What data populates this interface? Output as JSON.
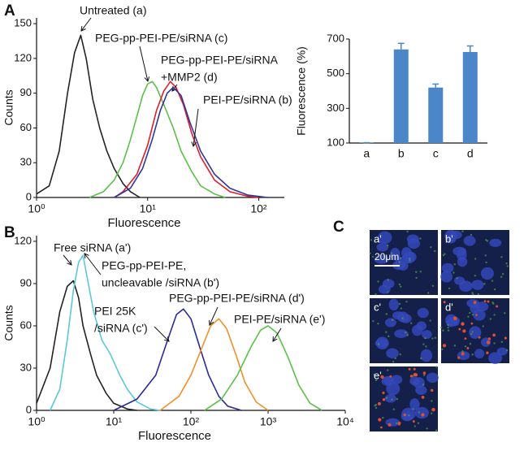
{
  "chart_data": [
    {
      "type": "line",
      "panel_label": "A",
      "xlabel": "Fluorescence",
      "ylabel": "Counts",
      "xscale": "log",
      "xlim": [
        1,
        170
      ],
      "xticks": [
        {
          "value": 1,
          "label": "10⁰"
        },
        {
          "value": 10,
          "label": "10¹"
        },
        {
          "value": 100,
          "label": "10²"
        }
      ],
      "ylim": [
        0,
        155
      ],
      "yticks": [
        0,
        30,
        60,
        90,
        120,
        150
      ],
      "series": [
        {
          "label": [
            "Untreated (a)"
          ],
          "color": "#222222",
          "x": [
            1.0,
            1.3,
            1.6,
            1.9,
            2.2,
            2.5,
            2.8,
            3.2,
            3.7,
            4.3,
            5,
            6,
            7,
            8.5
          ],
          "values": [
            3,
            10,
            40,
            90,
            125,
            140,
            120,
            85,
            60,
            40,
            25,
            12,
            5,
            0
          ]
        },
        {
          "label": [
            "PEG-pp-PEI-PE/siRNA (c)"
          ],
          "color": "#5cc04a",
          "x": [
            3,
            4,
            5,
            6,
            7,
            8,
            9,
            10,
            11,
            12,
            14,
            17,
            20,
            25,
            30,
            40,
            50
          ],
          "values": [
            0,
            5,
            15,
            30,
            50,
            70,
            88,
            98,
            100,
            95,
            80,
            60,
            40,
            22,
            10,
            3,
            0
          ]
        },
        {
          "label": [
            "PEG-pp-PEI-PE/siRNA",
            "+MMP2 (d)"
          ],
          "color": "#d8202a",
          "x": [
            5,
            6,
            8,
            10,
            12,
            14,
            16,
            18,
            21,
            25,
            30,
            40,
            55,
            80,
            100
          ],
          "values": [
            0,
            5,
            20,
            45,
            75,
            92,
            100,
            95,
            80,
            55,
            35,
            15,
            5,
            1,
            0
          ]
        },
        {
          "label": [
            "PEI-PE/siRNA (b)"
          ],
          "color": "#34349c",
          "x": [
            5,
            7,
            9,
            11,
            13,
            15,
            17,
            20,
            24,
            30,
            40,
            55,
            80,
            120
          ],
          "values": [
            0,
            8,
            25,
            50,
            75,
            90,
            95,
            88,
            65,
            40,
            20,
            8,
            2,
            0
          ]
        }
      ]
    },
    {
      "type": "bar",
      "ylabel": "Fluorescence (%)",
      "categories": [
        "a",
        "b",
        "c",
        "d"
      ],
      "values": [
        102,
        640,
        420,
        625
      ],
      "errors": [
        0,
        35,
        20,
        35
      ],
      "color": "#4a86c8",
      "ylim": [
        100,
        700
      ],
      "yticks": [
        100,
        300,
        500,
        700
      ]
    },
    {
      "type": "line",
      "panel_label": "B",
      "xlabel": "Fluorescence",
      "ylabel": "Counts",
      "xscale": "log",
      "xlim": [
        1,
        10000
      ],
      "xticks": [
        {
          "value": 1,
          "label": "10⁰"
        },
        {
          "value": 10,
          "label": "10¹"
        },
        {
          "value": 100,
          "label": "10²"
        },
        {
          "value": 1000,
          "label": "10³"
        },
        {
          "value": 10000,
          "label": "10⁴"
        }
      ],
      "ylim": [
        0,
        124
      ],
      "yticks": [
        0,
        30,
        60,
        90,
        120
      ],
      "series": [
        {
          "label": [
            "Free siRNA (a')"
          ],
          "color": "#222222",
          "x": [
            1,
            1.5,
            2,
            2.5,
            3,
            3.5,
            4,
            5,
            6,
            8,
            10,
            15,
            20
          ],
          "values": [
            5,
            30,
            70,
            88,
            92,
            80,
            60,
            40,
            25,
            12,
            5,
            1,
            0
          ]
        },
        {
          "label": [
            "PEG-pp-PEI-PE,",
            "uncleavable /siRNA (b')"
          ],
          "color": "#5bc8d8",
          "x": [
            1.5,
            2,
            2.5,
            3,
            3.5,
            4,
            4.5,
            5.5,
            7,
            9,
            12,
            15,
            20,
            30,
            40
          ],
          "values": [
            0,
            15,
            50,
            85,
            105,
            110,
            95,
            70,
            50,
            40,
            25,
            15,
            6,
            1,
            0
          ]
        },
        {
          "label": [
            "PEI 25K",
            "/siRNA (c')"
          ],
          "color": "#2a2a9a",
          "x": [
            10,
            20,
            35,
            50,
            65,
            80,
            100,
            130,
            170,
            230,
            300,
            450
          ],
          "values": [
            0,
            8,
            25,
            50,
            68,
            72,
            65,
            45,
            25,
            10,
            3,
            0
          ]
        },
        {
          "label": [
            "PEG-pp-PEI-PE/siRNA (d')"
          ],
          "color": "#f0902a",
          "x": [
            40,
            70,
            100,
            140,
            180,
            230,
            290,
            380,
            500,
            700,
            1000
          ],
          "values": [
            0,
            10,
            25,
            45,
            60,
            65,
            58,
            40,
            20,
            6,
            0
          ]
        },
        {
          "label": [
            "PEI-PE/siRNA (e')"
          ],
          "color": "#5cc04a",
          "x": [
            150,
            250,
            400,
            600,
            800,
            1000,
            1300,
            1800,
            2500,
            3500,
            5000
          ],
          "values": [
            0,
            8,
            25,
            45,
            57,
            60,
            55,
            38,
            18,
            5,
            0
          ]
        }
      ]
    }
  ],
  "panel_c": {
    "label": "C",
    "images": [
      "a'",
      "b'",
      "c'",
      "d'",
      "e'"
    ],
    "scale_bar": "20μm"
  }
}
